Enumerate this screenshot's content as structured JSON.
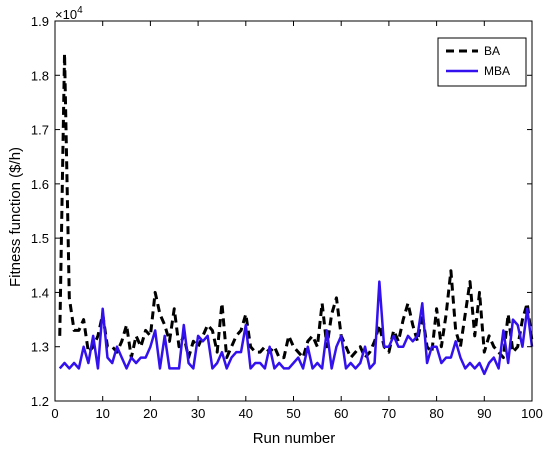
{
  "chart_data": {
    "type": "line",
    "xlabel": "Run number",
    "ylabel": "Fitness function ($/h)",
    "multiplier_label": "×10",
    "multiplier_exponent": "4",
    "xlim": [
      0,
      100
    ],
    "ylim": [
      1.2,
      1.9
    ],
    "xticks": [
      0,
      10,
      20,
      30,
      40,
      50,
      60,
      70,
      80,
      90,
      100
    ],
    "yticks": [
      1.2,
      1.3,
      1.4,
      1.5,
      1.6,
      1.7,
      1.8,
      1.9
    ],
    "ytick_labels": [
      "1.2",
      "1.3",
      "1.4",
      "1.5",
      "1.6",
      "1.7",
      "1.8",
      "1.9"
    ],
    "grid": false,
    "legend_position": "top-right",
    "series": [
      {
        "name": "BA",
        "color": "#000000",
        "style": "dashed",
        "x": [
          1,
          2,
          3,
          4,
          5,
          6,
          7,
          8,
          9,
          10,
          11,
          12,
          13,
          14,
          15,
          16,
          17,
          18,
          19,
          20,
          21,
          22,
          23,
          24,
          25,
          26,
          27,
          28,
          29,
          30,
          31,
          32,
          33,
          34,
          35,
          36,
          37,
          38,
          39,
          40,
          41,
          42,
          43,
          44,
          45,
          46,
          47,
          48,
          49,
          50,
          51,
          52,
          53,
          54,
          55,
          56,
          57,
          58,
          59,
          60,
          61,
          62,
          63,
          64,
          65,
          66,
          67,
          68,
          69,
          70,
          71,
          72,
          73,
          74,
          75,
          76,
          77,
          78,
          79,
          80,
          81,
          82,
          83,
          84,
          85,
          86,
          87,
          88,
          89,
          90,
          91,
          92,
          93,
          94,
          95,
          96,
          97,
          98,
          99,
          100
        ],
        "values": [
          1.32,
          1.84,
          1.39,
          1.33,
          1.33,
          1.35,
          1.29,
          1.3,
          1.32,
          1.36,
          1.3,
          1.3,
          1.29,
          1.31,
          1.34,
          1.28,
          1.32,
          1.3,
          1.33,
          1.32,
          1.4,
          1.36,
          1.34,
          1.31,
          1.37,
          1.3,
          1.32,
          1.28,
          1.31,
          1.3,
          1.32,
          1.34,
          1.33,
          1.29,
          1.38,
          1.28,
          1.3,
          1.32,
          1.33,
          1.36,
          1.3,
          1.29,
          1.29,
          1.3,
          1.29,
          1.3,
          1.28,
          1.28,
          1.32,
          1.3,
          1.29,
          1.28,
          1.31,
          1.32,
          1.3,
          1.38,
          1.3,
          1.36,
          1.39,
          1.32,
          1.3,
          1.28,
          1.29,
          1.3,
          1.28,
          1.29,
          1.31,
          1.34,
          1.3,
          1.29,
          1.33,
          1.31,
          1.35,
          1.38,
          1.34,
          1.31,
          1.36,
          1.3,
          1.29,
          1.37,
          1.3,
          1.36,
          1.44,
          1.33,
          1.3,
          1.36,
          1.42,
          1.32,
          1.4,
          1.29,
          1.32,
          1.3,
          1.29,
          1.28,
          1.36,
          1.29,
          1.3,
          1.35,
          1.38,
          1.31
        ]
      },
      {
        "name": "MBA",
        "color": "#3311ee",
        "style": "solid",
        "x": [
          1,
          2,
          3,
          4,
          5,
          6,
          7,
          8,
          9,
          10,
          11,
          12,
          13,
          14,
          15,
          16,
          17,
          18,
          19,
          20,
          21,
          22,
          23,
          24,
          25,
          26,
          27,
          28,
          29,
          30,
          31,
          32,
          33,
          34,
          35,
          36,
          37,
          38,
          39,
          40,
          41,
          42,
          43,
          44,
          45,
          46,
          47,
          48,
          49,
          50,
          51,
          52,
          53,
          54,
          55,
          56,
          57,
          58,
          59,
          60,
          61,
          62,
          63,
          64,
          65,
          66,
          67,
          68,
          69,
          70,
          71,
          72,
          73,
          74,
          75,
          76,
          77,
          78,
          79,
          80,
          81,
          82,
          83,
          84,
          85,
          86,
          87,
          88,
          89,
          90,
          91,
          92,
          93,
          94,
          95,
          96,
          97,
          98,
          99,
          100
        ],
        "values": [
          1.26,
          1.27,
          1.26,
          1.27,
          1.26,
          1.3,
          1.27,
          1.32,
          1.26,
          1.37,
          1.28,
          1.27,
          1.3,
          1.28,
          1.26,
          1.28,
          1.27,
          1.28,
          1.28,
          1.3,
          1.33,
          1.26,
          1.32,
          1.26,
          1.26,
          1.26,
          1.34,
          1.27,
          1.26,
          1.32,
          1.31,
          1.32,
          1.26,
          1.27,
          1.29,
          1.26,
          1.28,
          1.29,
          1.29,
          1.34,
          1.26,
          1.27,
          1.27,
          1.26,
          1.3,
          1.26,
          1.27,
          1.26,
          1.26,
          1.27,
          1.28,
          1.26,
          1.3,
          1.26,
          1.27,
          1.26,
          1.33,
          1.26,
          1.3,
          1.32,
          1.26,
          1.27,
          1.26,
          1.27,
          1.3,
          1.26,
          1.27,
          1.42,
          1.3,
          1.3,
          1.32,
          1.3,
          1.3,
          1.32,
          1.31,
          1.32,
          1.38,
          1.27,
          1.3,
          1.3,
          1.27,
          1.28,
          1.28,
          1.31,
          1.28,
          1.26,
          1.27,
          1.26,
          1.27,
          1.25,
          1.27,
          1.28,
          1.26,
          1.33,
          1.27,
          1.35,
          1.34,
          1.3,
          1.37,
          1.3
        ]
      }
    ]
  }
}
